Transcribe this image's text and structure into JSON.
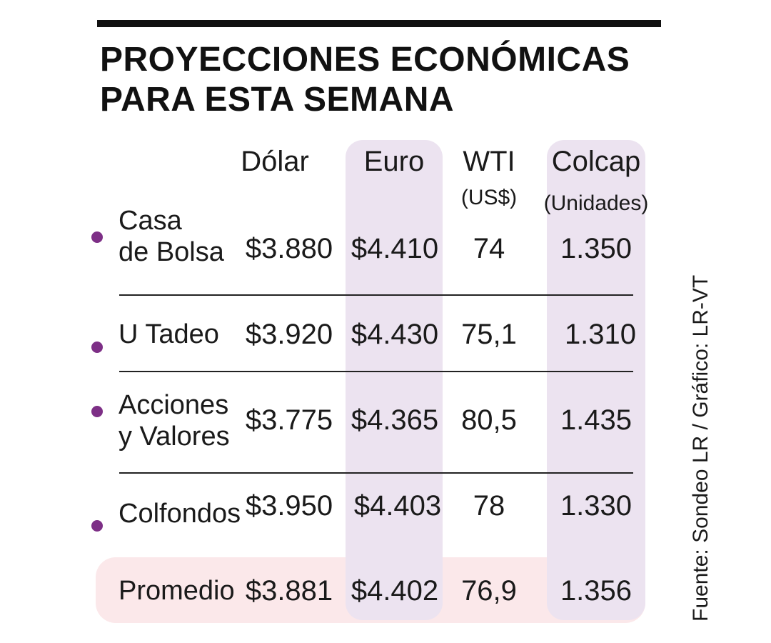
{
  "title": {
    "line1": "PROYECCIONES ECONÓMICAS",
    "line2": "PARA ESTA SEMANA"
  },
  "colors": {
    "title": "#111111",
    "bullet": "#7d2f86",
    "column_highlight": "#ece3f0",
    "promedio_highlight": "#fbe8ea",
    "rule": "#222222"
  },
  "table": {
    "columns": [
      {
        "label": "Dólar",
        "sub": ""
      },
      {
        "label": "Euro",
        "sub": ""
      },
      {
        "label": "WTI",
        "sub": "(US$)"
      },
      {
        "label": "Colcap",
        "sub": "(Unidades)"
      }
    ],
    "rows": [
      {
        "label_line1": "Casa",
        "label_line2": "de Bolsa",
        "values": [
          "$3.880",
          "$4.410",
          "74",
          "1.350"
        ]
      },
      {
        "label_line1": "U Tadeo",
        "label_line2": "",
        "values": [
          "$3.920",
          "$4.430",
          "75,1",
          "1.310"
        ]
      },
      {
        "label_line1": "Acciones",
        "label_line2": "y Valores",
        "values": [
          "$3.775",
          "$4.365",
          "80,5",
          "1.435"
        ]
      },
      {
        "label_line1": "Colfondos",
        "label_line2": "",
        "values": [
          "$3.950",
          "$4.403",
          "78",
          "1.330"
        ]
      }
    ],
    "summary": {
      "label": "Promedio",
      "values": [
        "$3.881",
        "$4.402",
        "76,9",
        "1.356"
      ]
    }
  },
  "source": "Fuente: Sondeo LR  / Gráfico: LR-VT"
}
